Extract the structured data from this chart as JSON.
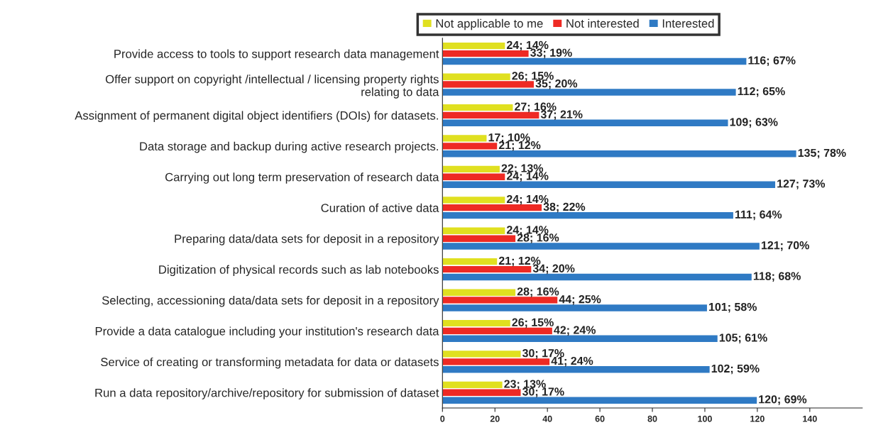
{
  "chart_data": {
    "type": "bar",
    "orientation": "horizontal",
    "categories": [
      "Provide access to tools to support research data management",
      "Offer support on copyright /intellectual / licensing property rights\nrelating to data",
      "Assignment of permanent digital object identifiers (DOIs) for datasets.",
      "Data storage and backup during active research projects.",
      "Carrying out long term preservation of research data",
      "Curation of active data",
      "Preparing data/data sets for deposit in a repository",
      "Digitization of physical records such as lab notebooks",
      "Selecting, accessioning data/data sets for deposit in a repository",
      "Provide a data catalogue including your institution's research data",
      "Service of creating or transforming metadata for data or datasets",
      "Run a data repository/archive/repository for submission of dataset"
    ],
    "series": [
      {
        "name": "Not applicable to me",
        "color": "#e0e020",
        "values": [
          24,
          26,
          27,
          17,
          22,
          24,
          24,
          21,
          28,
          26,
          30,
          23
        ],
        "value_labels": [
          "24; 14%",
          "26; 15%",
          "27; 16%",
          "17; 10%",
          "22; 13%",
          "24; 14%",
          "24; 14%",
          "21; 12%",
          "28; 16%",
          "26; 15%",
          "30; 17%",
          "23; 13%"
        ]
      },
      {
        "name": "Not interested",
        "color": "#ee2a24",
        "values": [
          33,
          35,
          37,
          21,
          24,
          38,
          28,
          34,
          44,
          42,
          41,
          30
        ],
        "value_labels": [
          "33; 19%",
          "35; 20%",
          "37; 21%",
          "21; 12%",
          "24; 14%",
          "38; 22%",
          "28; 16%",
          "34; 20%",
          "44; 25%",
          "42; 24%",
          "41; 24%",
          "30; 17%"
        ]
      },
      {
        "name": "Interested",
        "color": "#2f7ac4",
        "values": [
          116,
          112,
          109,
          135,
          127,
          111,
          121,
          118,
          101,
          105,
          102,
          120
        ],
        "value_labels": [
          "116; 67%",
          "112; 65%",
          "109; 63%",
          "135; 78%",
          "127; 73%",
          "111; 64%",
          "121; 70%",
          "118; 68%",
          "101; 58%",
          "105; 61%",
          "102; 59%",
          "120; 69%"
        ]
      }
    ],
    "xlim": [
      0,
      160
    ],
    "xticks": [
      0,
      20,
      40,
      60,
      80,
      100,
      120,
      140
    ],
    "grid": false,
    "legend": "top"
  }
}
